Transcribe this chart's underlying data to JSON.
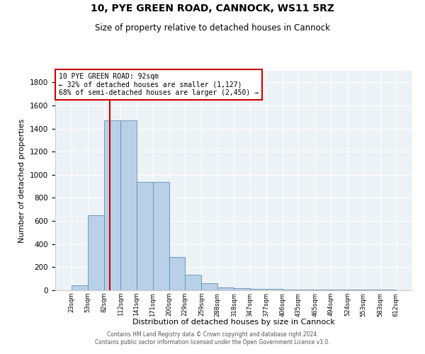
{
  "title1": "10, PYE GREEN ROAD, CANNOCK, WS11 5RZ",
  "title2": "Size of property relative to detached houses in Cannock",
  "xlabel": "Distribution of detached houses by size in Cannock",
  "ylabel": "Number of detached properties",
  "bar_edges": [
    23,
    53,
    82,
    112,
    141,
    171,
    200,
    229,
    259,
    288,
    318,
    347,
    377,
    406,
    435,
    465,
    494,
    524,
    553,
    583,
    612
  ],
  "bar_heights": [
    40,
    648,
    1469,
    1469,
    935,
    935,
    290,
    135,
    60,
    25,
    20,
    15,
    10,
    5,
    5,
    5,
    5,
    5,
    5,
    5
  ],
  "bar_color": "#b8d0e8",
  "bar_edge_color": "#6090b8",
  "vline_x": 92,
  "vline_color": "#cc0000",
  "annotation_title": "10 PYE GREEN ROAD: 92sqm",
  "annotation_line1": "← 32% of detached houses are smaller (1,127)",
  "annotation_line2": "68% of semi-detached houses are larger (2,450) →",
  "annotation_box_color": "#cc0000",
  "ylim": [
    0,
    1900
  ],
  "yticks": [
    0,
    200,
    400,
    600,
    800,
    1000,
    1200,
    1400,
    1600,
    1800
  ],
  "bg_color": "#edf2f7",
  "grid_color": "#ffffff",
  "footer1": "Contains HM Land Registry data © Crown copyright and database right 2024.",
  "footer2": "Contains public sector information licensed under the Open Government Licence v3.0."
}
